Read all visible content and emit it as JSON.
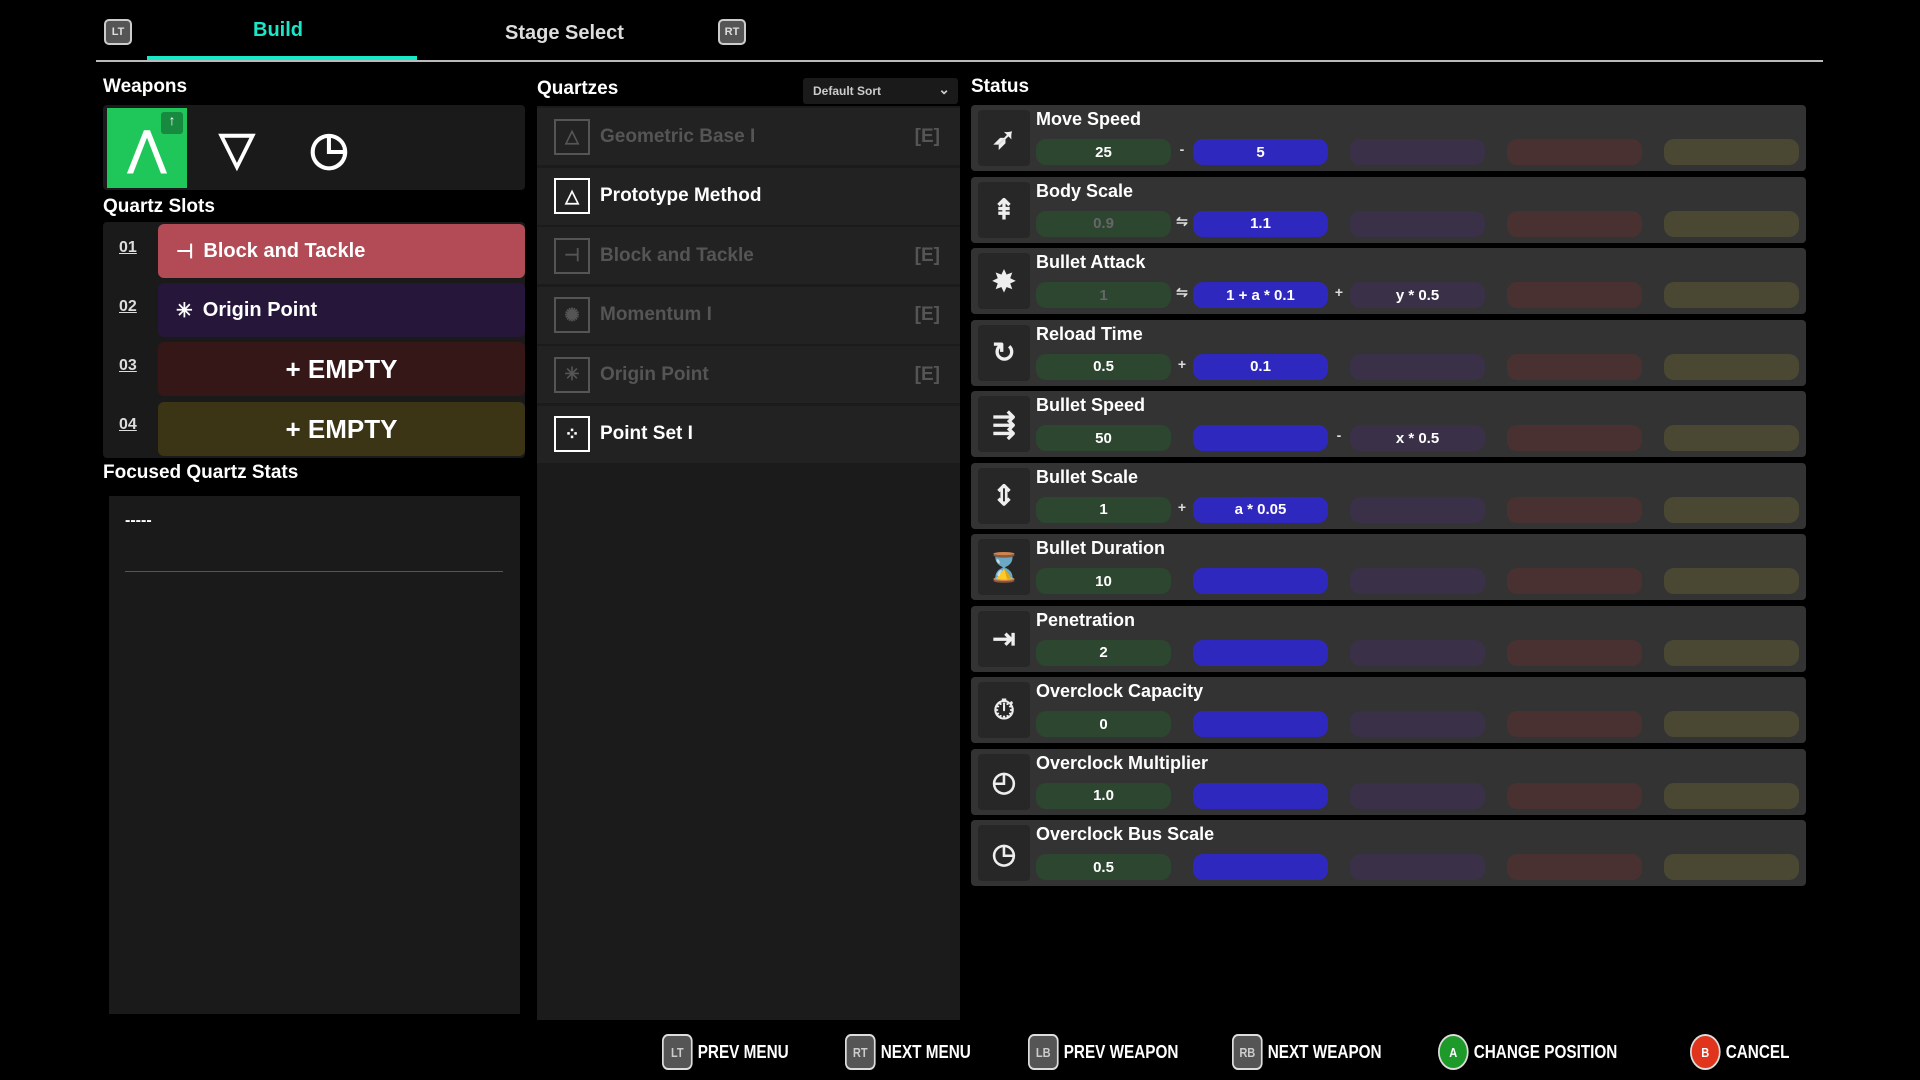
{
  "tabs": {
    "prev_key": "LT",
    "next_key": "RT",
    "items": [
      {
        "label": "Build",
        "active": true
      },
      {
        "label": "Stage Select",
        "active": false
      }
    ],
    "accent": "#19e8c8"
  },
  "weapons": {
    "title": "Weapons",
    "items": [
      {
        "icon": "arrow-up-icon",
        "selected": true
      },
      {
        "icon": "shield-icon",
        "selected": false
      },
      {
        "icon": "clock-icon",
        "selected": false
      }
    ],
    "selected_color": "#1fc75a"
  },
  "slots": {
    "title": "Quartz Slots",
    "items": [
      {
        "num": "01",
        "label": "Block and Tackle",
        "icon": "pulley-icon",
        "color": "#b24b55"
      },
      {
        "num": "02",
        "label": "Origin Point",
        "icon": "origin-point-icon",
        "color": "#25163a"
      },
      {
        "num": "03",
        "label": "+ EMPTY",
        "icon": "",
        "color": "#361717"
      },
      {
        "num": "04",
        "label": "+ EMPTY",
        "icon": "",
        "color": "#3b3515"
      }
    ]
  },
  "focused": {
    "title": "Focused Quartz Stats",
    "value": "-----"
  },
  "quartzes": {
    "title": "Quartzes",
    "sort": "Default Sort",
    "items": [
      {
        "label": "Geometric Base I",
        "tag": "[E]",
        "dim": true,
        "icon": "triangle-circle-icon"
      },
      {
        "label": "Prototype Method",
        "tag": "",
        "dim": false,
        "icon": "triangle-circle-icon"
      },
      {
        "label": "Block and Tackle",
        "tag": "[E]",
        "dim": true,
        "icon": "pulley-icon"
      },
      {
        "label": "Momentum I",
        "tag": "[E]",
        "dim": true,
        "icon": "momentum-icon"
      },
      {
        "label": "Origin Point",
        "tag": "[E]",
        "dim": true,
        "icon": "origin-point-icon"
      },
      {
        "label": "Point Set I",
        "tag": "",
        "dim": false,
        "icon": "point-set-icon"
      }
    ]
  },
  "status": {
    "title": "Status",
    "colors": {
      "base": "#2d4630",
      "blue": "#2f28bf",
      "purple": "#3a3048",
      "red": "#4a3131",
      "olive": "#4a4832"
    },
    "rows": [
      {
        "name": "Move Speed",
        "icon": "rocket-icon",
        "base": "25",
        "base_dim": false,
        "op1": "-",
        "blue": "5",
        "op2": "",
        "purple": ""
      },
      {
        "name": "Body Scale",
        "icon": "body-scale-icon",
        "base": "0.9",
        "base_dim": true,
        "op1": "⇋",
        "blue": "1.1",
        "op2": "",
        "purple": ""
      },
      {
        "name": "Bullet Attack",
        "icon": "bullet-impact-icon",
        "base": "1",
        "base_dim": true,
        "op1": "⇋",
        "blue": "1 + a * 0.1",
        "op2": "+",
        "purple": "y * 0.5"
      },
      {
        "name": "Reload Time",
        "icon": "reload-icon",
        "base": "0.5",
        "base_dim": false,
        "op1": "+",
        "blue": "0.1",
        "op2": "",
        "purple": ""
      },
      {
        "name": "Bullet Speed",
        "icon": "bullet-speed-icon",
        "base": "50",
        "base_dim": false,
        "op1": "",
        "blue": "",
        "op2": "-",
        "purple": "x * 0.5"
      },
      {
        "name": "Bullet Scale",
        "icon": "bullet-scale-icon",
        "base": "1",
        "base_dim": false,
        "op1": "+",
        "blue": "a * 0.05",
        "op2": "",
        "purple": ""
      },
      {
        "name": "Bullet Duration",
        "icon": "bullet-duration-icon",
        "base": "10",
        "base_dim": false,
        "op1": "",
        "blue": "",
        "op2": "",
        "purple": ""
      },
      {
        "name": "Penetration",
        "icon": "penetration-icon",
        "base": "2",
        "base_dim": false,
        "op1": "",
        "blue": "",
        "op2": "",
        "purple": ""
      },
      {
        "name": "Overclock Capacity",
        "icon": "stopwatch-icon",
        "base": "0",
        "base_dim": false,
        "op1": "",
        "blue": "",
        "op2": "",
        "purple": ""
      },
      {
        "name": "Overclock Multiplier",
        "icon": "overclock-rocket-icon",
        "base": "1.0",
        "base_dim": false,
        "op1": "",
        "blue": "",
        "op2": "",
        "purple": ""
      },
      {
        "name": "Overclock Bus Scale",
        "icon": "fast-clock-icon",
        "base": "0.5",
        "base_dim": false,
        "op1": "",
        "blue": "",
        "op2": "",
        "purple": ""
      }
    ]
  },
  "footer": [
    {
      "key": "LT",
      "label": "PREV MENU"
    },
    {
      "key": "RT",
      "label": "NEXT MENU"
    },
    {
      "key": "LB",
      "label": "PREV WEAPON"
    },
    {
      "key": "RB",
      "label": "NEXT WEAPON"
    },
    {
      "key": "A",
      "label": "CHANGE POSITION",
      "color": "#1e9a2a"
    },
    {
      "key": "B",
      "label": "CANCEL",
      "color": "#e0341c"
    }
  ]
}
